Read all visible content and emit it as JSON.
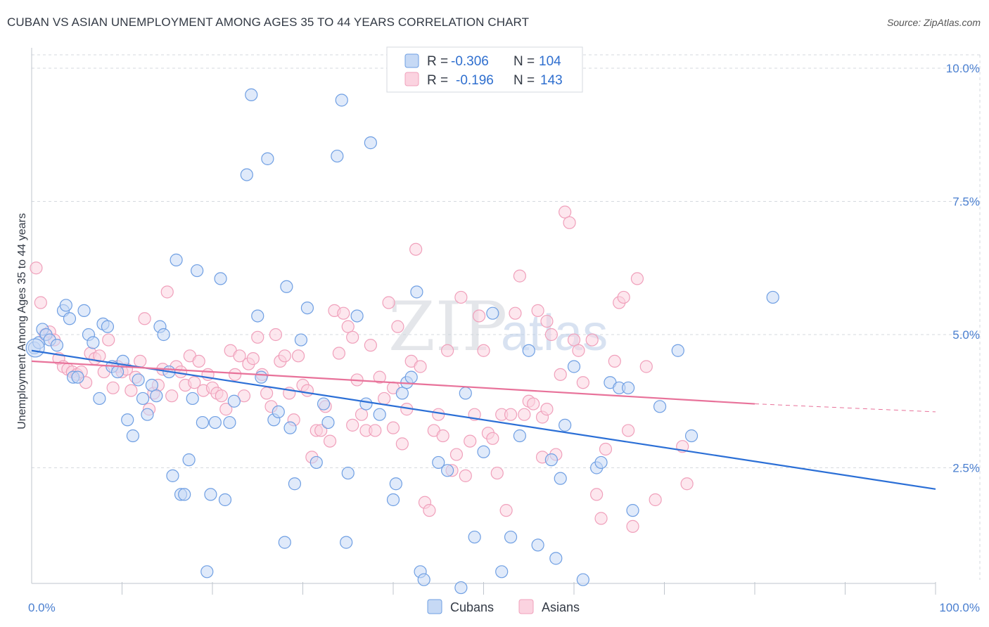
{
  "title": "CUBAN VS ASIAN UNEMPLOYMENT AMONG AGES 35 TO 44 YEARS CORRELATION CHART",
  "source": "Source: ZipAtlas.com",
  "watermark": {
    "zip": "ZIP",
    "atlas": "atlas"
  },
  "colors": {
    "cubans": "#6f9fe3",
    "asians": "#f0a0bb",
    "cubans_line": "#2b6fd6",
    "asians_line": "#e8729a",
    "tick": "#4a7fd0",
    "grid": "#d5d9df"
  },
  "legend": {
    "rows": [
      {
        "r_label": "R =",
        "r_value": "-0.306",
        "n_label": "N =",
        "n_value": "104"
      },
      {
        "r_label": "R =",
        "r_value": "-0.196",
        "n_label": "N =",
        "n_value": "143"
      }
    ]
  },
  "chart_data": {
    "type": "scatter",
    "title": "CUBAN VS ASIAN UNEMPLOYMENT AMONG AGES 35 TO 44 YEARS CORRELATION CHART",
    "xlabel": "",
    "ylabel": "Unemployment Among Ages 35 to 44 years",
    "xlim": [
      0,
      100
    ],
    "ylim": [
      0,
      10.5
    ],
    "x_ticks": [
      {
        "value": 0,
        "label": "0.0%"
      },
      {
        "value": 100,
        "label": "100.0%"
      }
    ],
    "y_ticks": [
      {
        "value": 2.5,
        "label": "2.5%"
      },
      {
        "value": 5.0,
        "label": "5.0%"
      },
      {
        "value": 7.5,
        "label": "7.5%"
      },
      {
        "value": 10.0,
        "label": "10.0%"
      }
    ],
    "grid": true,
    "legend_position": "top-center",
    "series": [
      {
        "name": "Cubans",
        "trend": {
          "x": [
            0,
            100
          ],
          "y": [
            4.7,
            2.1
          ]
        },
        "points": [
          [
            0.3,
            4.75
          ],
          [
            0.8,
            4.85
          ],
          [
            1.2,
            5.1
          ],
          [
            1.6,
            5.0
          ],
          [
            2.0,
            4.9
          ],
          [
            2.8,
            4.8
          ],
          [
            3.5,
            5.45
          ],
          [
            3.8,
            5.55
          ],
          [
            4.2,
            5.3
          ],
          [
            4.6,
            4.2
          ],
          [
            5.1,
            4.2
          ],
          [
            5.8,
            5.45
          ],
          [
            6.3,
            5.0
          ],
          [
            6.8,
            4.85
          ],
          [
            7.5,
            3.8
          ],
          [
            7.9,
            5.2
          ],
          [
            8.4,
            5.15
          ],
          [
            8.9,
            4.4
          ],
          [
            9.5,
            4.3
          ],
          [
            10.1,
            4.5
          ],
          [
            10.6,
            3.4
          ],
          [
            11.2,
            3.1
          ],
          [
            11.8,
            4.15
          ],
          [
            12.3,
            3.8
          ],
          [
            12.8,
            3.5
          ],
          [
            13.3,
            4.05
          ],
          [
            13.8,
            3.85
          ],
          [
            14.2,
            5.15
          ],
          [
            14.6,
            5.0
          ],
          [
            15.2,
            4.3
          ],
          [
            15.6,
            2.35
          ],
          [
            16.0,
            6.4
          ],
          [
            16.5,
            2.0
          ],
          [
            16.9,
            2.0
          ],
          [
            17.4,
            2.65
          ],
          [
            17.8,
            3.8
          ],
          [
            18.3,
            6.2
          ],
          [
            18.9,
            3.35
          ],
          [
            19.4,
            0.55
          ],
          [
            19.8,
            2.0
          ],
          [
            20.3,
            3.35
          ],
          [
            20.9,
            6.05
          ],
          [
            21.4,
            1.9
          ],
          [
            21.9,
            3.35
          ],
          [
            22.4,
            3.75
          ],
          [
            23.8,
            8.0
          ],
          [
            24.3,
            9.5
          ],
          [
            25.0,
            5.35
          ],
          [
            25.4,
            4.2
          ],
          [
            26.1,
            8.3
          ],
          [
            26.8,
            3.4
          ],
          [
            27.3,
            3.55
          ],
          [
            28.0,
            1.1
          ],
          [
            28.2,
            5.9
          ],
          [
            28.6,
            3.25
          ],
          [
            29.1,
            2.2
          ],
          [
            29.8,
            4.9
          ],
          [
            30.5,
            5.5
          ],
          [
            31.5,
            2.6
          ],
          [
            32.3,
            3.7
          ],
          [
            32.8,
            3.35
          ],
          [
            33.8,
            8.35
          ],
          [
            34.3,
            9.4
          ],
          [
            34.8,
            1.1
          ],
          [
            35.0,
            2.4
          ],
          [
            36.0,
            5.35
          ],
          [
            37.0,
            3.7
          ],
          [
            37.5,
            8.6
          ],
          [
            38.5,
            3.5
          ],
          [
            40.0,
            1.9
          ],
          [
            40.3,
            2.2
          ],
          [
            41.0,
            3.9
          ],
          [
            41.5,
            4.1
          ],
          [
            42.0,
            4.2
          ],
          [
            42.6,
            5.8
          ],
          [
            43.0,
            0.55
          ],
          [
            43.4,
            0.4
          ],
          [
            45.0,
            2.6
          ],
          [
            46.0,
            2.45
          ],
          [
            47.5,
            0.25
          ],
          [
            48.0,
            3.9
          ],
          [
            49.0,
            1.2
          ],
          [
            50.0,
            2.8
          ],
          [
            51.0,
            5.4
          ],
          [
            52.0,
            0.55
          ],
          [
            53.0,
            1.2
          ],
          [
            54.0,
            3.1
          ],
          [
            55.0,
            4.7
          ],
          [
            56.0,
            1.05
          ],
          [
            57.5,
            2.65
          ],
          [
            58.0,
            0.8
          ],
          [
            58.5,
            2.3
          ],
          [
            59.0,
            3.3
          ],
          [
            60.0,
            4.4
          ],
          [
            61.0,
            0.4
          ],
          [
            62.5,
            2.5
          ],
          [
            63.0,
            2.6
          ],
          [
            64.0,
            4.1
          ],
          [
            65.0,
            4.0
          ],
          [
            66.0,
            4.0
          ],
          [
            66.5,
            1.7
          ],
          [
            69.5,
            3.65
          ],
          [
            71.5,
            4.7
          ],
          [
            73.0,
            3.1
          ],
          [
            82.0,
            5.7
          ]
        ]
      },
      {
        "name": "Asians",
        "trend": {
          "x": [
            0,
            80
          ],
          "y": [
            4.5,
            3.7
          ]
        },
        "trend_dashed": {
          "x": [
            80,
            100
          ],
          "y": [
            3.7,
            3.55
          ]
        },
        "points": [
          [
            0.5,
            6.25
          ],
          [
            1.0,
            5.6
          ],
          [
            1.5,
            5.0
          ],
          [
            2.0,
            5.05
          ],
          [
            2.5,
            4.9
          ],
          [
            3.0,
            4.55
          ],
          [
            3.5,
            4.4
          ],
          [
            4.0,
            4.35
          ],
          [
            4.5,
            4.3
          ],
          [
            5.0,
            4.25
          ],
          [
            5.5,
            4.3
          ],
          [
            6.0,
            4.1
          ],
          [
            6.5,
            4.65
          ],
          [
            7.0,
            4.55
          ],
          [
            7.5,
            4.6
          ],
          [
            8.0,
            4.3
          ],
          [
            8.5,
            4.9
          ],
          [
            9.0,
            4.0
          ],
          [
            9.5,
            4.4
          ],
          [
            10.0,
            4.3
          ],
          [
            10.5,
            4.35
          ],
          [
            11.0,
            3.95
          ],
          [
            11.5,
            4.2
          ],
          [
            12.0,
            4.5
          ],
          [
            12.5,
            5.3
          ],
          [
            13.0,
            3.6
          ],
          [
            13.5,
            3.9
          ],
          [
            14.0,
            4.05
          ],
          [
            14.5,
            4.35
          ],
          [
            15.0,
            5.8
          ],
          [
            15.5,
            3.85
          ],
          [
            16.0,
            4.4
          ],
          [
            16.5,
            4.3
          ],
          [
            17.0,
            4.05
          ],
          [
            17.5,
            4.6
          ],
          [
            18.0,
            4.1
          ],
          [
            18.5,
            4.5
          ],
          [
            19.0,
            3.95
          ],
          [
            19.5,
            4.25
          ],
          [
            20.0,
            4.0
          ],
          [
            20.5,
            3.9
          ],
          [
            21.0,
            3.85
          ],
          [
            21.5,
            3.6
          ],
          [
            22.0,
            4.7
          ],
          [
            22.5,
            4.25
          ],
          [
            23.0,
            4.6
          ],
          [
            23.5,
            3.85
          ],
          [
            24.0,
            4.45
          ],
          [
            24.5,
            4.55
          ],
          [
            25.0,
            4.95
          ],
          [
            25.5,
            4.25
          ],
          [
            26.0,
            3.9
          ],
          [
            26.5,
            3.65
          ],
          [
            27.0,
            5.0
          ],
          [
            27.5,
            4.5
          ],
          [
            28.0,
            4.6
          ],
          [
            28.5,
            3.9
          ],
          [
            29.0,
            3.4
          ],
          [
            29.5,
            4.6
          ],
          [
            30.0,
            4.05
          ],
          [
            30.5,
            3.95
          ],
          [
            31.0,
            2.7
          ],
          [
            31.5,
            3.2
          ],
          [
            32.0,
            3.2
          ],
          [
            32.5,
            3.65
          ],
          [
            33.0,
            3.0
          ],
          [
            33.5,
            5.45
          ],
          [
            34.0,
            4.65
          ],
          [
            34.5,
            5.4
          ],
          [
            35.0,
            5.15
          ],
          [
            35.5,
            4.95
          ],
          [
            36.0,
            4.15
          ],
          [
            36.5,
            3.5
          ],
          [
            37.0,
            3.2
          ],
          [
            37.5,
            4.8
          ],
          [
            38.0,
            3.2
          ],
          [
            38.5,
            4.2
          ],
          [
            39.0,
            3.8
          ],
          [
            39.5,
            5.6
          ],
          [
            40.0,
            4.0
          ],
          [
            40.5,
            5.15
          ],
          [
            41.0,
            2.95
          ],
          [
            41.5,
            3.6
          ],
          [
            42.0,
            4.5
          ],
          [
            42.5,
            6.6
          ],
          [
            43.0,
            4.4
          ],
          [
            43.5,
            1.85
          ],
          [
            44.0,
            1.7
          ],
          [
            44.5,
            3.2
          ],
          [
            45.0,
            3.5
          ],
          [
            45.5,
            3.1
          ],
          [
            46.0,
            4.7
          ],
          [
            46.5,
            2.45
          ],
          [
            47.0,
            2.75
          ],
          [
            47.5,
            5.7
          ],
          [
            48.0,
            2.35
          ],
          [
            48.5,
            3.0
          ],
          [
            49.0,
            3.5
          ],
          [
            49.5,
            5.35
          ],
          [
            50.0,
            4.7
          ],
          [
            50.5,
            3.15
          ],
          [
            51.0,
            3.05
          ],
          [
            51.5,
            2.4
          ],
          [
            52.0,
            3.5
          ],
          [
            52.5,
            1.7
          ],
          [
            53.0,
            3.5
          ],
          [
            53.5,
            5.4
          ],
          [
            54.0,
            6.1
          ],
          [
            54.5,
            3.5
          ],
          [
            55.0,
            3.75
          ],
          [
            55.5,
            3.7
          ],
          [
            56.0,
            5.45
          ],
          [
            56.5,
            2.7
          ],
          [
            57.0,
            5.25
          ],
          [
            57.5,
            5.0
          ],
          [
            58.0,
            2.75
          ],
          [
            58.5,
            4.25
          ],
          [
            59.0,
            7.3
          ],
          [
            59.5,
            7.1
          ],
          [
            60.0,
            4.9
          ],
          [
            60.5,
            4.7
          ],
          [
            61.0,
            4.1
          ],
          [
            62.0,
            4.9
          ],
          [
            62.5,
            2.0
          ],
          [
            63.0,
            1.55
          ],
          [
            63.5,
            2.85
          ],
          [
            64.5,
            4.5
          ],
          [
            65.0,
            5.6
          ],
          [
            65.5,
            5.7
          ],
          [
            66.0,
            3.2
          ],
          [
            66.5,
            1.4
          ],
          [
            67.0,
            6.05
          ],
          [
            68.0,
            4.4
          ],
          [
            69.0,
            1.9
          ],
          [
            72.0,
            2.9
          ],
          [
            72.5,
            2.2
          ],
          [
            56.5,
            3.45
          ],
          [
            57.0,
            3.6
          ],
          [
            35.5,
            3.3
          ],
          [
            40.0,
            3.25
          ]
        ]
      }
    ]
  },
  "bottom_legend": [
    {
      "label": "Cubans"
    },
    {
      "label": "Asians"
    }
  ]
}
